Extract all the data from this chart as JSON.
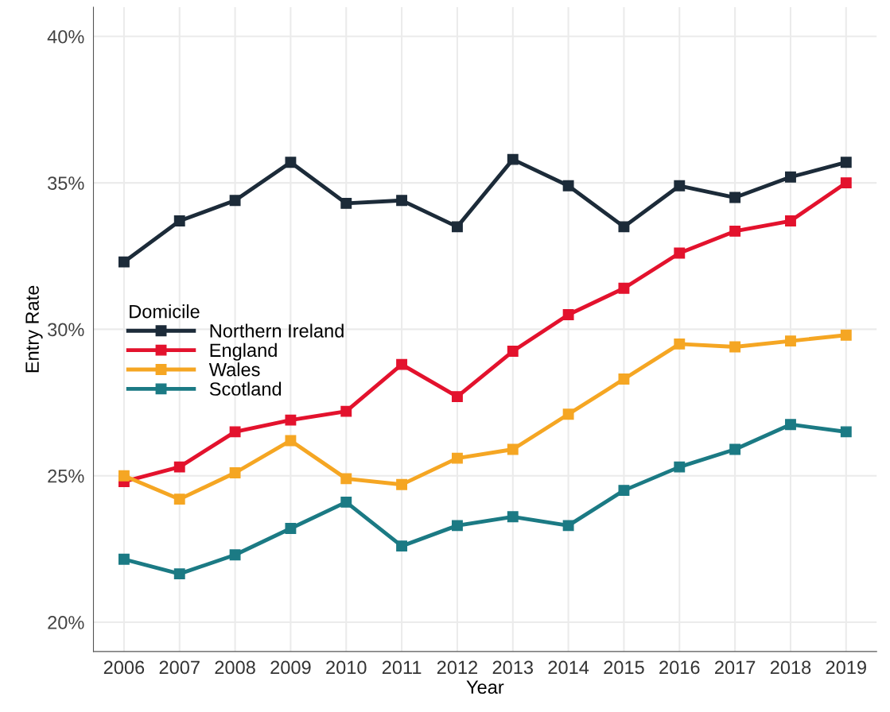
{
  "chart_data": {
    "type": "line",
    "xlabel": "Year",
    "ylabel": "Entry Rate",
    "legend_title": "Domicile",
    "categories": [
      "2006",
      "2007",
      "2008",
      "2009",
      "2010",
      "2011",
      "2012",
      "2013",
      "2014",
      "2015",
      "2016",
      "2017",
      "2018",
      "2019"
    ],
    "series": [
      {
        "name": "Northern Ireland",
        "color": "#1c2b39",
        "values": [
          32.3,
          33.7,
          34.4,
          35.7,
          34.3,
          34.4,
          33.5,
          35.8,
          34.9,
          33.5,
          34.9,
          34.5,
          35.2,
          35.7
        ]
      },
      {
        "name": "England",
        "color": "#e3122d",
        "values": [
          24.8,
          25.3,
          26.5,
          26.9,
          27.2,
          28.8,
          27.7,
          29.25,
          30.5,
          31.4,
          32.6,
          33.35,
          33.7,
          35.0
        ]
      },
      {
        "name": "Wales",
        "color": "#f5a623",
        "values": [
          25.0,
          24.2,
          25.1,
          26.2,
          24.9,
          24.7,
          25.6,
          25.9,
          27.1,
          28.3,
          29.5,
          29.4,
          29.6,
          29.8
        ]
      },
      {
        "name": "Scotland",
        "color": "#1b7a84",
        "values": [
          22.15,
          21.65,
          22.3,
          23.2,
          24.1,
          22.6,
          23.3,
          23.6,
          23.3,
          24.5,
          25.3,
          25.9,
          26.75,
          26.5
        ]
      }
    ],
    "ylim": [
      19,
      41
    ],
    "yticks": [
      {
        "value": 20,
        "label": "20%"
      },
      {
        "value": 25,
        "label": "25%"
      },
      {
        "value": 30,
        "label": "30%"
      },
      {
        "value": 35,
        "label": "35%"
      },
      {
        "value": 40,
        "label": "40%"
      }
    ],
    "grid": true,
    "legend": "left",
    "marker": "square",
    "line_style": "solid"
  }
}
